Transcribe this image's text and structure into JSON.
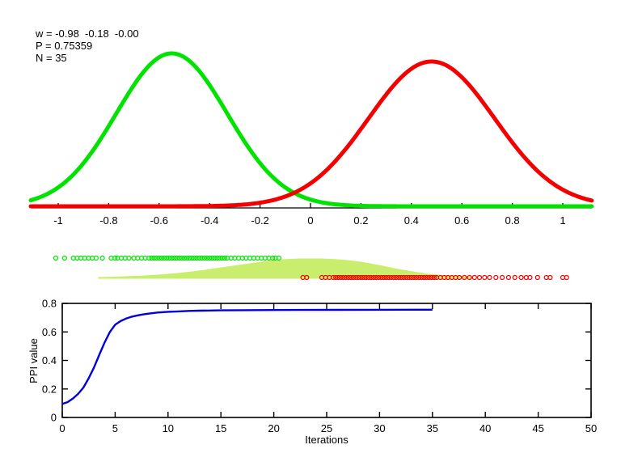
{
  "annotation": {
    "line_w": "w = -0.98  -0.18  -0.00",
    "line_p": "P = 0.75359",
    "line_n": "N = 35"
  },
  "chart_data": [
    {
      "id": "class-density-curves",
      "type": "line",
      "title": "",
      "xlabel": "",
      "ylabel": "",
      "xlim": [
        -1.1,
        1.1
      ],
      "grid": false,
      "legend": "none",
      "xticks": [
        -1,
        -0.8,
        -0.6,
        -0.4,
        -0.2,
        0,
        0.2,
        0.4,
        0.6,
        0.8,
        1
      ],
      "xtick_labels": [
        "-1",
        "-0.8",
        "-0.6",
        "-0.4",
        "-0.2",
        "0",
        "0.2",
        "0.4",
        "0.6",
        "0.8",
        "1"
      ],
      "series": [
        {
          "name": "green-class-gaussian",
          "color": "#00e300",
          "shape": "gaussian",
          "mean": -0.55,
          "sigma": 0.22,
          "peak_rel": 1.0
        },
        {
          "name": "red-class-gaussian",
          "color": "#f40000",
          "shape": "gaussian",
          "mean": 0.48,
          "sigma": 0.25,
          "peak_rel": 0.947
        }
      ]
    },
    {
      "id": "sample-rug-and-overlap-density",
      "type": "scatter",
      "marker": "open-circle",
      "green_samples": {
        "color": "#00e300",
        "values": [
          -1.01,
          -0.975,
          -0.94,
          -0.925,
          -0.91,
          -0.895,
          -0.88,
          -0.865,
          -0.85,
          -0.825,
          -0.79,
          -0.775,
          -0.765,
          -0.75,
          -0.735,
          -0.72,
          -0.7,
          -0.685,
          -0.67,
          -0.655,
          -0.64,
          -0.63,
          -0.62,
          -0.61,
          -0.6,
          -0.59,
          -0.58,
          -0.57,
          -0.56,
          -0.55,
          -0.54,
          -0.53,
          -0.52,
          -0.51,
          -0.5,
          -0.49,
          -0.48,
          -0.47,
          -0.46,
          -0.45,
          -0.44,
          -0.43,
          -0.42,
          -0.41,
          -0.4,
          -0.39,
          -0.38,
          -0.37,
          -0.36,
          -0.35,
          -0.34,
          -0.33,
          -0.315,
          -0.3,
          -0.285,
          -0.27,
          -0.255,
          -0.24,
          -0.225,
          -0.21,
          -0.195,
          -0.18,
          -0.165,
          -0.15,
          -0.14,
          -0.125
        ]
      },
      "red_samples": {
        "color": "#f40000",
        "values": [
          -0.03,
          -0.015,
          0.045,
          0.06,
          0.075,
          0.09,
          0.1,
          0.11,
          0.12,
          0.13,
          0.14,
          0.15,
          0.16,
          0.17,
          0.18,
          0.19,
          0.2,
          0.21,
          0.22,
          0.23,
          0.24,
          0.25,
          0.26,
          0.27,
          0.28,
          0.29,
          0.3,
          0.31,
          0.32,
          0.33,
          0.34,
          0.35,
          0.36,
          0.37,
          0.38,
          0.39,
          0.4,
          0.41,
          0.42,
          0.43,
          0.44,
          0.45,
          0.46,
          0.47,
          0.48,
          0.49,
          0.5,
          0.515,
          0.53,
          0.545,
          0.56,
          0.575,
          0.59,
          0.61,
          0.63,
          0.65,
          0.67,
          0.69,
          0.71,
          0.735,
          0.76,
          0.785,
          0.81,
          0.835,
          0.855,
          0.87,
          0.9,
          0.935,
          0.95,
          1.0,
          1.015
        ]
      },
      "overlap_density": {
        "color": "#c9ee6e",
        "outline": [
          [
            -0.84,
            0.04
          ],
          [
            -0.76,
            0.07
          ],
          [
            -0.68,
            0.11
          ],
          [
            -0.6,
            0.17
          ],
          [
            -0.52,
            0.26
          ],
          [
            -0.44,
            0.38
          ],
          [
            -0.36,
            0.53
          ],
          [
            -0.28,
            0.68
          ],
          [
            -0.22,
            0.79
          ],
          [
            -0.16,
            0.9
          ],
          [
            -0.1,
            0.97
          ],
          [
            -0.04,
            1.0
          ],
          [
            0.04,
            1.0
          ],
          [
            0.1,
            0.97
          ],
          [
            0.16,
            0.9
          ],
          [
            0.22,
            0.79
          ],
          [
            0.28,
            0.64
          ],
          [
            0.34,
            0.48
          ],
          [
            0.4,
            0.34
          ],
          [
            0.46,
            0.23
          ],
          [
            0.52,
            0.15
          ],
          [
            0.58,
            0.09
          ],
          [
            0.62,
            0.06
          ],
          [
            0.64,
            0.04
          ]
        ]
      }
    },
    {
      "id": "ppi-convergence",
      "type": "line",
      "title": "",
      "xlabel": "Iterations",
      "ylabel": "PPI value",
      "xlim": [
        0,
        50
      ],
      "ylim": [
        0,
        0.8
      ],
      "grid": false,
      "box": true,
      "xticks": [
        0,
        5,
        10,
        15,
        20,
        25,
        30,
        35,
        40,
        45,
        50
      ],
      "xtick_labels": [
        "0",
        "5",
        "10",
        "15",
        "20",
        "25",
        "30",
        "35",
        "40",
        "45",
        "50"
      ],
      "yticks": [
        0,
        0.2,
        0.4,
        0.6,
        0.8
      ],
      "ytick_labels": [
        "0",
        "0.2",
        "0.4",
        "0.6",
        "0.8"
      ],
      "series": [
        {
          "name": "ppi-value",
          "color": "#0000dd",
          "points": [
            [
              0,
              0.095
            ],
            [
              0.5,
              0.107
            ],
            [
              1,
              0.133
            ],
            [
              1.5,
              0.165
            ],
            [
              2,
              0.21
            ],
            [
              2.5,
              0.275
            ],
            [
              3,
              0.35
            ],
            [
              3.5,
              0.44
            ],
            [
              4,
              0.525
            ],
            [
              4.5,
              0.6
            ],
            [
              5,
              0.65
            ],
            [
              5.5,
              0.675
            ],
            [
              6,
              0.693
            ],
            [
              6.5,
              0.705
            ],
            [
              7,
              0.714
            ],
            [
              7.5,
              0.721
            ],
            [
              8,
              0.727
            ],
            [
              9,
              0.736
            ],
            [
              10,
              0.741
            ],
            [
              11,
              0.744
            ],
            [
              12,
              0.747
            ],
            [
              13,
              0.749
            ],
            [
              14,
              0.75
            ],
            [
              15,
              0.751
            ],
            [
              17,
              0.7525
            ],
            [
              20,
              0.7535
            ],
            [
              23,
              0.754
            ],
            [
              26,
              0.7545
            ],
            [
              30,
              0.755
            ],
            [
              35,
              0.7555
            ]
          ]
        }
      ]
    }
  ]
}
